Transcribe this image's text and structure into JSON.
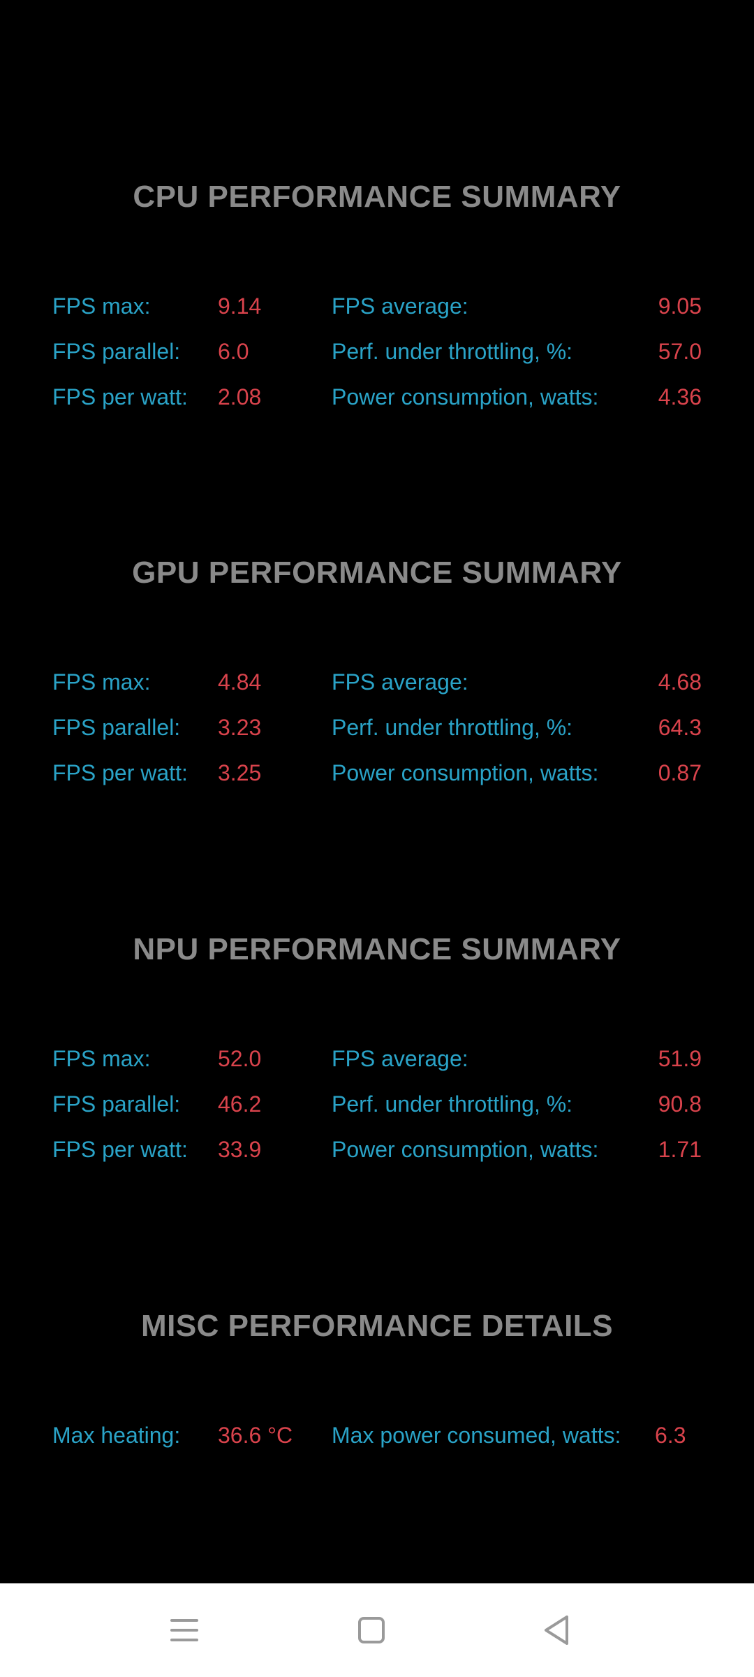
{
  "sections": [
    {
      "title": "CPU PERFORMANCE SUMMARY",
      "fps_max_label": "FPS max:",
      "fps_max": "9.14",
      "fps_avg_label": "FPS average:",
      "fps_avg": "9.05",
      "fps_parallel_label": "FPS parallel:",
      "fps_parallel": "6.0",
      "throttling_label": "Perf. under throttling, %:",
      "throttling": "57.0",
      "fps_per_watt_label": "FPS per watt:",
      "fps_per_watt": "2.08",
      "power_label": "Power consumption, watts:",
      "power": "4.36"
    },
    {
      "title": "GPU PERFORMANCE SUMMARY",
      "fps_max_label": "FPS max:",
      "fps_max": "4.84",
      "fps_avg_label": "FPS average:",
      "fps_avg": "4.68",
      "fps_parallel_label": "FPS parallel:",
      "fps_parallel": "3.23",
      "throttling_label": "Perf. under throttling, %:",
      "throttling": "64.3",
      "fps_per_watt_label": "FPS per watt:",
      "fps_per_watt": "3.25",
      "power_label": "Power consumption, watts:",
      "power": "0.87"
    },
    {
      "title": "NPU PERFORMANCE SUMMARY",
      "fps_max_label": "FPS max:",
      "fps_max": "52.0",
      "fps_avg_label": "FPS average:",
      "fps_avg": "51.9",
      "fps_parallel_label": "FPS parallel:",
      "fps_parallel": "46.2",
      "throttling_label": "Perf. under throttling, %:",
      "throttling": "90.8",
      "fps_per_watt_label": "FPS per watt:",
      "fps_per_watt": "33.9",
      "power_label": "Power consumption, watts:",
      "power": "1.71"
    }
  ],
  "misc": {
    "title": "MISC PERFORMANCE DETAILS",
    "max_heating_label": "Max heating:",
    "max_heating": "36.6 °C",
    "max_power_label": "Max power consumed, watts:",
    "max_power": "6.3"
  },
  "colors": {
    "background": "#000000",
    "title": "#8a8a8a",
    "label": "#2aa3c7",
    "value": "#d9434c",
    "navbar": "#ffffff",
    "nav_icon": "#9a9a9a"
  },
  "navbar": {
    "icons": [
      "menu-icon",
      "home-square-icon",
      "back-triangle-icon"
    ]
  }
}
